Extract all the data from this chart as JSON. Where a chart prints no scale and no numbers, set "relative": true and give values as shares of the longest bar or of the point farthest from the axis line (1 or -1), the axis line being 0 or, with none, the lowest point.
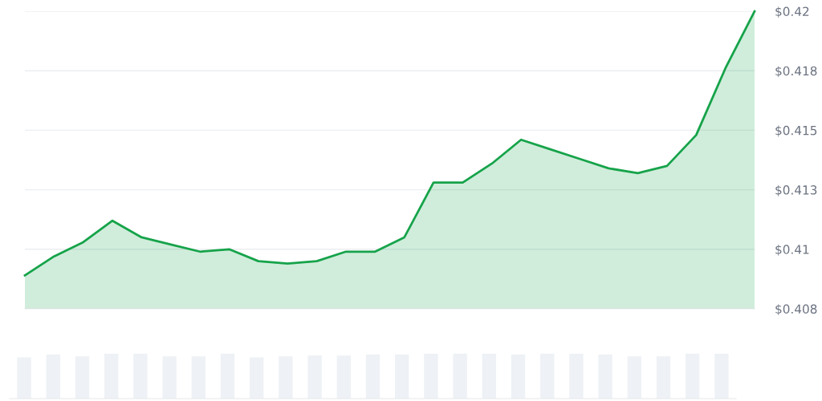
{
  "chart_data": [
    {
      "type": "area",
      "categories": [
        null,
        null,
        null,
        null,
        null,
        null,
        null,
        null,
        null,
        null,
        null,
        null,
        null,
        null,
        null,
        null,
        null,
        null,
        null,
        null,
        null,
        null,
        null,
        null,
        null,
        null
      ],
      "series": [
        {
          "color": "#16a34a",
          "values": [
            0.4089,
            0.4097,
            0.4103,
            0.4112,
            0.4105,
            0.4102,
            0.4099,
            0.41,
            0.4095,
            0.4094,
            0.4095,
            0.4099,
            0.4099,
            0.4105,
            0.4128,
            0.4128,
            0.4136,
            0.4146,
            0.4142,
            0.4138,
            0.4134,
            0.4132,
            0.4135,
            0.4148,
            0.4176,
            0.42
          ]
        }
      ],
      "ylim": [
        0.4075,
        0.42
      ],
      "yticks": [
        {
          "value": 0.4075,
          "label": "$0.408"
        },
        {
          "value": 0.41,
          "label": "$0.41"
        },
        {
          "value": 0.4125,
          "label": "$0.413"
        },
        {
          "value": 0.415,
          "label": "$0.415"
        },
        {
          "value": 0.4175,
          "label": "$0.418"
        },
        {
          "value": 0.42,
          "label": "$0.42"
        }
      ],
      "grid": "y",
      "tick_labels": "y"
    },
    {
      "type": "bar",
      "relative": true,
      "categories": [
        null,
        null,
        null,
        null,
        null,
        null,
        null,
        null,
        null,
        null,
        null,
        null,
        null,
        null,
        null,
        null,
        null,
        null,
        null,
        null,
        null,
        null,
        null,
        null,
        null
      ],
      "color": "#eef1f5",
      "values": [
        0.92,
        0.98,
        0.94,
        1,
        1,
        0.94,
        0.94,
        1,
        0.92,
        0.94,
        0.96,
        0.96,
        0.98,
        0.98,
        1,
        1,
        1,
        0.98,
        1,
        1,
        0.98,
        0.94,
        0.94,
        1,
        1
      ],
      "tick_labels": false
    }
  ]
}
